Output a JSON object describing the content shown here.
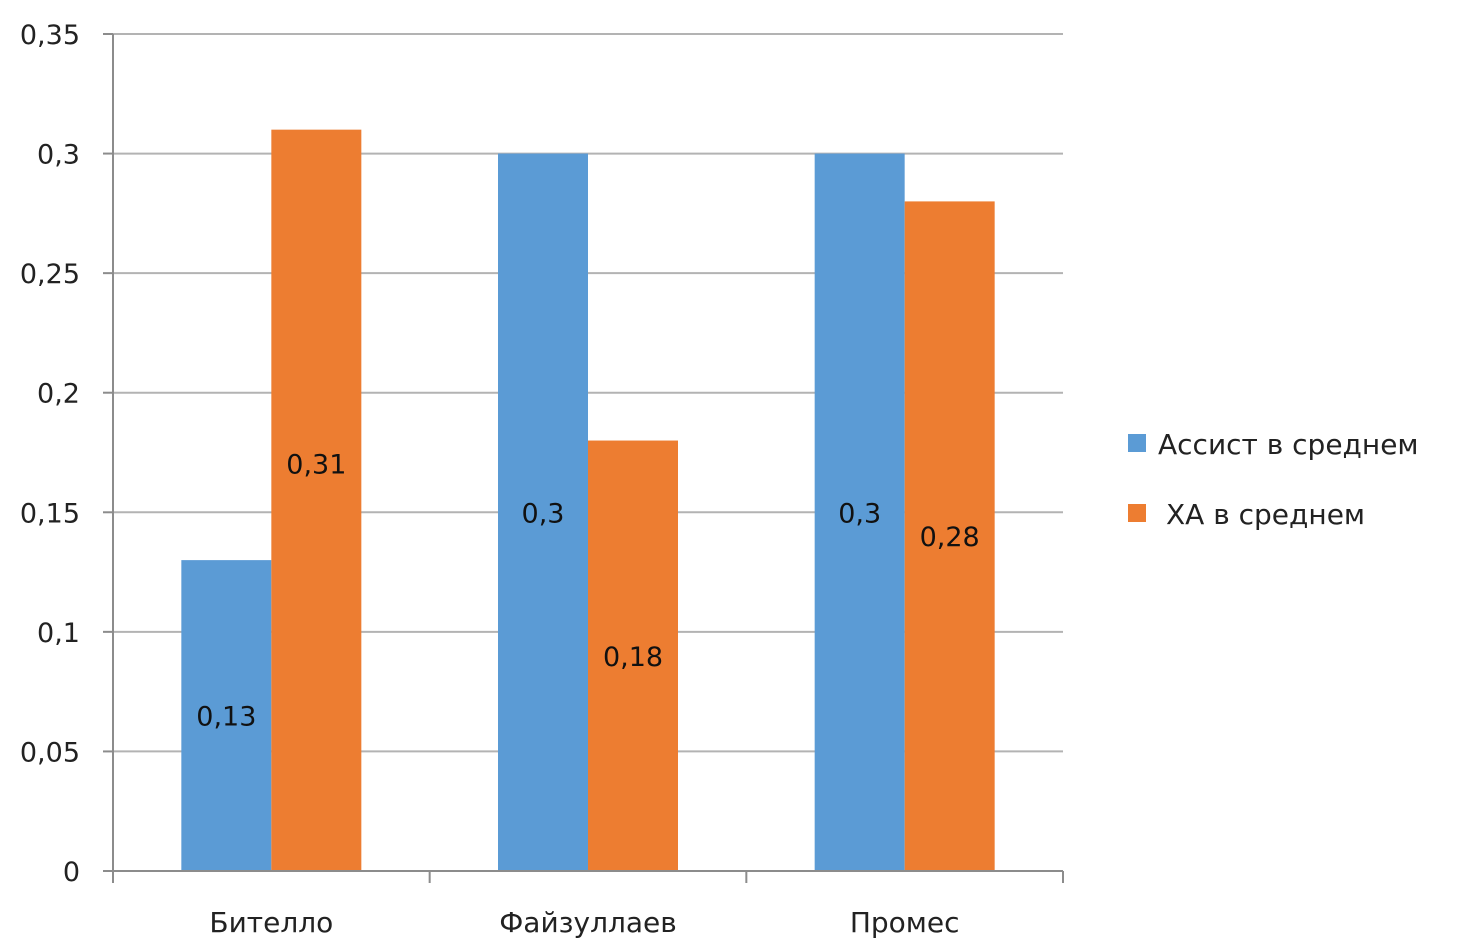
{
  "colors": {
    "series_1": "#5b9bd5",
    "series_2": "#ed7d31",
    "grid": "#b3b3b3",
    "axis": "#8c8c8c"
  },
  "chart_data": {
    "type": "bar",
    "categories": [
      "Бителло",
      "Файзуллаев",
      "Промес"
    ],
    "series": [
      {
        "name": "Ассист в среднем",
        "values": [
          0.13,
          0.3,
          0.3
        ],
        "labels": [
          "0,13",
          "0,3",
          "0,3"
        ]
      },
      {
        "name": "ХА в среднем",
        "values": [
          0.31,
          0.18,
          0.28
        ],
        "labels": [
          "0,31",
          "0,18",
          "0,28"
        ]
      }
    ],
    "title": "",
    "xlabel": "",
    "ylabel": "",
    "ylim": [
      0,
      0.35
    ],
    "yticks": [
      0,
      0.05,
      0.1,
      0.15,
      0.2,
      0.25,
      0.3,
      0.35
    ],
    "ytick_labels": [
      "0",
      "0,05",
      "0,1",
      "0,15",
      "0,2",
      "0,25",
      "0,3",
      "0,35"
    ],
    "grid": true,
    "legend_position": "right"
  }
}
